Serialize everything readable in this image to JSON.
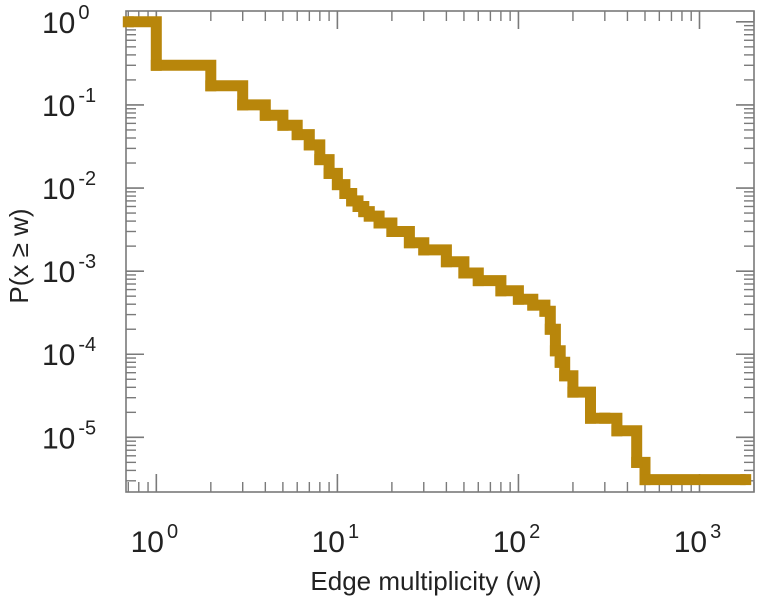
{
  "chart_data": {
    "type": "line",
    "title": "",
    "xlabel": "Edge multiplicity (w)",
    "ylabel": "P(x ≥ w)",
    "xscale": "log",
    "yscale": "log",
    "xlim": [
      0.68,
      2000
    ],
    "ylim": [
      2.2e-06,
      1.35
    ],
    "grid": false,
    "legend": "none",
    "series_color": "#b8860b",
    "x_ticks": [
      {
        "value": 1,
        "base": "10",
        "exp": "0"
      },
      {
        "value": 10,
        "base": "10",
        "exp": "1"
      },
      {
        "value": 100,
        "base": "10",
        "exp": "2"
      },
      {
        "value": 1000,
        "base": "10",
        "exp": "3"
      }
    ],
    "y_ticks": [
      {
        "value": 1,
        "base": "10",
        "exp": "0"
      },
      {
        "value": 0.1,
        "base": "10",
        "exp": "-1"
      },
      {
        "value": 0.01,
        "base": "10",
        "exp": "-2"
      },
      {
        "value": 0.001,
        "base": "10",
        "exp": "-3"
      },
      {
        "value": 0.0001,
        "base": "10",
        "exp": "-4"
      },
      {
        "value": 1e-05,
        "base": "10",
        "exp": "-5"
      }
    ],
    "series": [
      {
        "x": [
          0.7,
          1,
          2,
          3,
          4,
          5,
          6,
          7,
          8,
          9,
          10,
          11,
          12,
          13,
          14,
          15,
          17,
          20,
          25,
          30,
          40,
          50,
          60,
          80,
          100,
          120,
          140,
          150,
          160,
          170,
          180,
          200,
          250,
          300,
          350,
          450,
          500,
          1800
        ],
        "y": [
          1.0,
          0.3,
          0.17,
          0.1,
          0.075,
          0.057,
          0.044,
          0.033,
          0.022,
          0.015,
          0.011,
          0.0086,
          0.007,
          0.006,
          0.0052,
          0.0046,
          0.0038,
          0.003,
          0.0022,
          0.0018,
          0.0013,
          0.00095,
          0.00077,
          0.00058,
          0.00046,
          0.00039,
          0.00033,
          0.0002,
          0.00011,
          8e-05,
          5.5e-05,
          3.5e-05,
          1.7e-05,
          1.7e-05,
          1.2e-05,
          5e-06,
          3.1e-06,
          3.1e-06
        ]
      }
    ]
  }
}
